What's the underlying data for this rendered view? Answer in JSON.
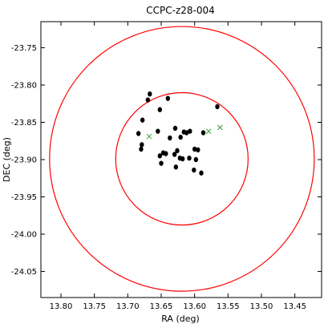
{
  "chart_data": {
    "type": "scatter",
    "title": "CCPC-z28-004",
    "xlabel": "RA (deg)",
    "ylabel": "DEC (deg)",
    "xlim": [
      13.83,
      13.41
    ],
    "ylim": [
      -24.085,
      -23.715
    ],
    "x_inverted": true,
    "xticks": [
      13.8,
      13.75,
      13.7,
      13.65,
      13.6,
      13.55,
      13.5,
      13.45
    ],
    "xtick_labels": [
      "13.80",
      "13.75",
      "13.70",
      "13.65",
      "13.60",
      "13.55",
      "13.50",
      "13.45"
    ],
    "yticks": [
      -23.75,
      -23.8,
      -23.85,
      -23.9,
      -23.95,
      -24.0,
      -24.05
    ],
    "ytick_labels": [
      "-23.75",
      "-23.80",
      "-23.85",
      "-23.90",
      "-23.95",
      "-24.00",
      "-24.05"
    ],
    "grid": false,
    "circles": [
      {
        "center": [
          13.619,
          -23.899
        ],
        "radius_deg": 0.0888,
        "color": "#ff0000"
      },
      {
        "center": [
          13.619,
          -23.899
        ],
        "radius_deg": 0.1775,
        "color": "#ff0000"
      }
    ],
    "members": {
      "marker": "dot",
      "color": "#000000",
      "points": [
        [
          13.667,
          -23.812
        ],
        [
          13.67,
          -23.82
        ],
        [
          13.64,
          -23.818
        ],
        [
          13.652,
          -23.833
        ],
        [
          13.566,
          -23.829
        ],
        [
          13.678,
          -23.847
        ],
        [
          13.655,
          -23.862
        ],
        [
          13.629,
          -23.858
        ],
        [
          13.616,
          -23.863
        ],
        [
          13.612,
          -23.864
        ],
        [
          13.607,
          -23.862
        ],
        [
          13.587,
          -23.864
        ],
        [
          13.684,
          -23.865
        ],
        [
          13.637,
          -23.871
        ],
        [
          13.621,
          -23.87
        ],
        [
          13.679,
          -23.88
        ],
        [
          13.68,
          -23.886
        ],
        [
          13.626,
          -23.888
        ],
        [
          13.6,
          -23.886
        ],
        [
          13.595,
          -23.887
        ],
        [
          13.647,
          -23.891
        ],
        [
          13.643,
          -23.892
        ],
        [
          13.63,
          -23.893
        ],
        [
          13.652,
          -23.895
        ],
        [
          13.622,
          -23.898
        ],
        [
          13.618,
          -23.899
        ],
        [
          13.598,
          -23.9
        ],
        [
          13.608,
          -23.898
        ],
        [
          13.65,
          -23.905
        ],
        [
          13.628,
          -23.91
        ],
        [
          13.601,
          -23.914
        ],
        [
          13.59,
          -23.918
        ]
      ]
    },
    "others": {
      "marker": "x",
      "color": "#2ca02c",
      "points": [
        [
          13.668,
          -23.869
        ],
        [
          13.579,
          -23.862
        ],
        [
          13.562,
          -23.857
        ]
      ]
    }
  }
}
